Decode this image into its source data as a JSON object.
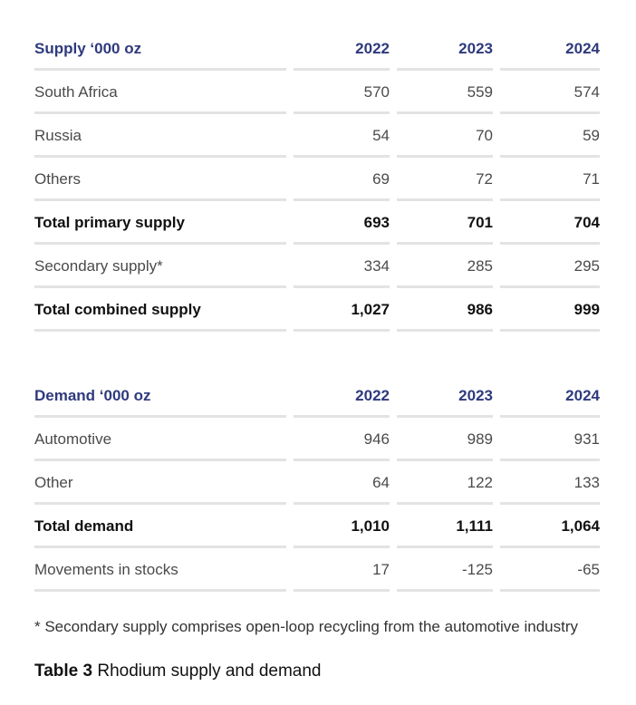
{
  "supply": {
    "header": [
      "Supply ‘000 oz",
      "2022",
      "2023",
      "2024"
    ],
    "rows": [
      {
        "label": "South Africa",
        "v2022": "570",
        "v2023": "559",
        "v2024": "574"
      },
      {
        "label": "Russia",
        "v2022": "54",
        "v2023": "70",
        "v2024": "59"
      },
      {
        "label": "Others",
        "v2022": "69",
        "v2023": "72",
        "v2024": "71"
      },
      {
        "label": "Total primary supply",
        "v2022": "693",
        "v2023": "701",
        "v2024": "704"
      },
      {
        "label": "Secondary supply*",
        "v2022": "334",
        "v2023": "285",
        "v2024": "295"
      },
      {
        "label": "Total combined supply",
        "v2022": "1,027",
        "v2023": "986",
        "v2024": "999"
      }
    ]
  },
  "demand": {
    "header": [
      "Demand ‘000 oz",
      "2022",
      "2023",
      "2024"
    ],
    "rows": [
      {
        "label": "Automotive",
        "v2022": "946",
        "v2023": "989",
        "v2024": "931"
      },
      {
        "label": "Other",
        "v2022": "64",
        "v2023": "122",
        "v2024": "133"
      },
      {
        "label": "Total demand",
        "v2022": "1,010",
        "v2023": "1,111",
        "v2024": "1,064"
      },
      {
        "label": "Movements in stocks",
        "v2022": "17",
        "v2023": "-125",
        "v2024": "-65"
      }
    ]
  },
  "footnote": "* Secondary supply comprises open-loop recycling from the automotive industry",
  "caption": {
    "number": "Table 3",
    "title": "Rhodium supply and demand"
  }
}
